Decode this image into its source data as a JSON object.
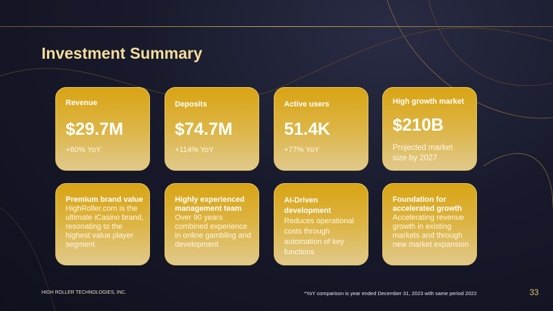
{
  "title": "Investment Summary",
  "metrics": [
    {
      "label": "Revenue",
      "value": "$29.7M",
      "sub": "+60% YoY"
    },
    {
      "label": "Deposits",
      "value": "$74.7M",
      "sub": "+114% YoY"
    },
    {
      "label": "Active users",
      "value": "51.4K",
      "sub": "+77% YoY"
    },
    {
      "label": "High growth market",
      "value": "$210B",
      "sub": "Projected market size by 2027"
    }
  ],
  "highlights": [
    {
      "heading": "Premium brand value",
      "body": "HighRoller.com is the ultimate iCasino brand, resonating to the highest value player segment"
    },
    {
      "heading": "Highly experienced management team",
      "body": "Over 90 years combined experience in online gambling and development"
    },
    {
      "heading": "AI-Driven development",
      "body": "Reduces operational costs through automation of key functions"
    },
    {
      "heading": "Foundation for accelerated growth",
      "body": "Accelerating revenue growth in existing markets and through new market expansion"
    }
  ],
  "footer": {
    "company": "HIGH ROLLER TECHNOLOGIES, INC.",
    "footnote": "*YoY comparison is year ended December 31, 2023 with same period 2022",
    "page": "33"
  },
  "colors": {
    "accent": "#d9a414",
    "title": "#f6dd9a",
    "background": "#181a2c"
  }
}
